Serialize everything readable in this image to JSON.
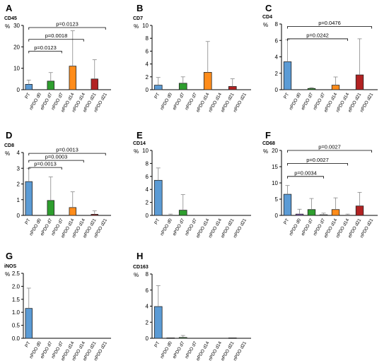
{
  "categories": [
    "PT",
    "nPDO d0",
    "ePDO d7",
    "nPDO d7",
    "ePDO d14",
    "nPDO d14",
    "ePDO d21",
    "nPDO d21"
  ],
  "colors": {
    "PT": "#5b9bd5",
    "nPDO d0": "#8a5bbf",
    "ePDO d7": "#2e9e2e",
    "nPDO d7": "#ffffff",
    "ePDO d14": "#ff8c1a",
    "nPDO d14": "#ffffff",
    "ePDO d21": "#b22222",
    "nPDO d21": "#ffffff",
    "stroke": "#222222",
    "errorbar": "#888888"
  },
  "chart_data": [
    {
      "panel": "A",
      "type": "bar",
      "title": "CD45",
      "ylabel": "%",
      "ylim": [
        0,
        30
      ],
      "yticks": [
        0,
        10,
        20,
        30
      ],
      "values": [
        2.5,
        0,
        4.0,
        0,
        11.0,
        0,
        5.0,
        0
      ],
      "errors": [
        2.0,
        0,
        4.0,
        0,
        16.5,
        0,
        9.0,
        0
      ],
      "annotations": [
        {
          "text": "p=0.0123",
          "from": "PT",
          "to": "nPDO d7",
          "level": 18
        },
        {
          "text": "p=0.0018",
          "from": "PT",
          "to": "nPDO d14",
          "level": 23.5
        },
        {
          "text": "p=0.0123",
          "from": "PT",
          "to": "nPDO d21",
          "level": 29
        }
      ]
    },
    {
      "panel": "B",
      "type": "bar",
      "title": "CD7",
      "ylabel": "%",
      "ylim": [
        0,
        10
      ],
      "yticks": [
        0,
        2,
        4,
        6,
        8,
        10
      ],
      "values": [
        0.7,
        0,
        1.0,
        0,
        2.7,
        0,
        0.5,
        0
      ],
      "errors": [
        1.2,
        0,
        1.0,
        0,
        4.8,
        0,
        1.2,
        0
      ],
      "annotations": []
    },
    {
      "panel": "C",
      "type": "bar",
      "title": "CD4",
      "ylabel": "%",
      "ylim": [
        0,
        8
      ],
      "yticks": [
        0,
        2,
        4,
        6,
        8
      ],
      "values": [
        3.4,
        0,
        0.15,
        0,
        0.55,
        0,
        1.8,
        0
      ],
      "errors": [
        2.7,
        0,
        0.1,
        0,
        1.0,
        0,
        4.4,
        0
      ],
      "annotations": [
        {
          "text": "p=0.0242",
          "from": "PT",
          "to": "nPDO d14",
          "level": 6.2
        },
        {
          "text": "p=0.0476",
          "from": "PT",
          "to": "nPDO d21",
          "level": 7.7
        }
      ]
    },
    {
      "panel": "D",
      "type": "bar",
      "title": "CD8",
      "ylabel": "%",
      "ylim": [
        0,
        4
      ],
      "yticks": [
        0,
        1,
        2,
        3,
        4
      ],
      "values": [
        2.15,
        0,
        0.95,
        0,
        0.5,
        0,
        0.07,
        0
      ],
      "errors": [
        0.85,
        0,
        1.5,
        0,
        1.0,
        0,
        0.22,
        0
      ],
      "annotations": [
        {
          "text": "p=0.0013",
          "from": "PT",
          "to": "nPDO d7",
          "level": 3.05
        },
        {
          "text": "p=0.0003",
          "from": "PT",
          "to": "nPDO d14",
          "level": 3.5
        },
        {
          "text": "p=0.0013",
          "from": "PT",
          "to": "nPDO d21",
          "level": 3.95
        }
      ]
    },
    {
      "panel": "E",
      "type": "bar",
      "title": "CD14",
      "ylabel": "%",
      "ylim": [
        0,
        10
      ],
      "yticks": [
        0,
        2,
        4,
        6,
        8,
        10
      ],
      "values": [
        5.4,
        0,
        0.8,
        0,
        0,
        0,
        0,
        0
      ],
      "errors": [
        1.9,
        0.2,
        2.4,
        0,
        0,
        0,
        0,
        0
      ],
      "annotations": []
    },
    {
      "panel": "F",
      "type": "bar",
      "title": "CD68",
      "ylabel": "%",
      "ylim": [
        0,
        20
      ],
      "yticks": [
        0,
        5,
        10,
        15,
        20
      ],
      "values": [
        6.5,
        0.4,
        1.8,
        0.2,
        1.8,
        0,
        2.9,
        0
      ],
      "errors": [
        2.7,
        1.5,
        3.4,
        0.5,
        3.6,
        0.4,
        4.2,
        0
      ],
      "annotations": [
        {
          "text": "p=0.0034",
          "from": "PT",
          "to": "nPDO d7",
          "level": 12
        },
        {
          "text": "p=0.0027",
          "from": "PT",
          "to": "nPDO d14",
          "level": 16
        },
        {
          "text": "p=0.0027",
          "from": "PT",
          "to": "nPDO d21",
          "level": 20
        }
      ]
    },
    {
      "panel": "G",
      "type": "bar",
      "title": "iNOS",
      "ylabel": "%",
      "ylim": [
        0,
        2.5
      ],
      "yticks": [
        "0.0",
        "0.5",
        "1.0",
        "1.5",
        "2.0",
        "2.5"
      ],
      "values": [
        1.15,
        0,
        0,
        0,
        0,
        0,
        0,
        0
      ],
      "errors": [
        0.78,
        0,
        0,
        0,
        0,
        0,
        0,
        0
      ],
      "annotations": []
    },
    {
      "panel": "H",
      "type": "bar",
      "title": "CD163",
      "ylabel": "%",
      "ylim": [
        0,
        8
      ],
      "yticks": [
        0,
        2,
        4,
        6,
        8
      ],
      "values": [
        3.95,
        0.05,
        0.1,
        0,
        0,
        0,
        0.05,
        0
      ],
      "errors": [
        2.6,
        0,
        0.25,
        0,
        0,
        0,
        0,
        0
      ],
      "annotations": []
    }
  ]
}
